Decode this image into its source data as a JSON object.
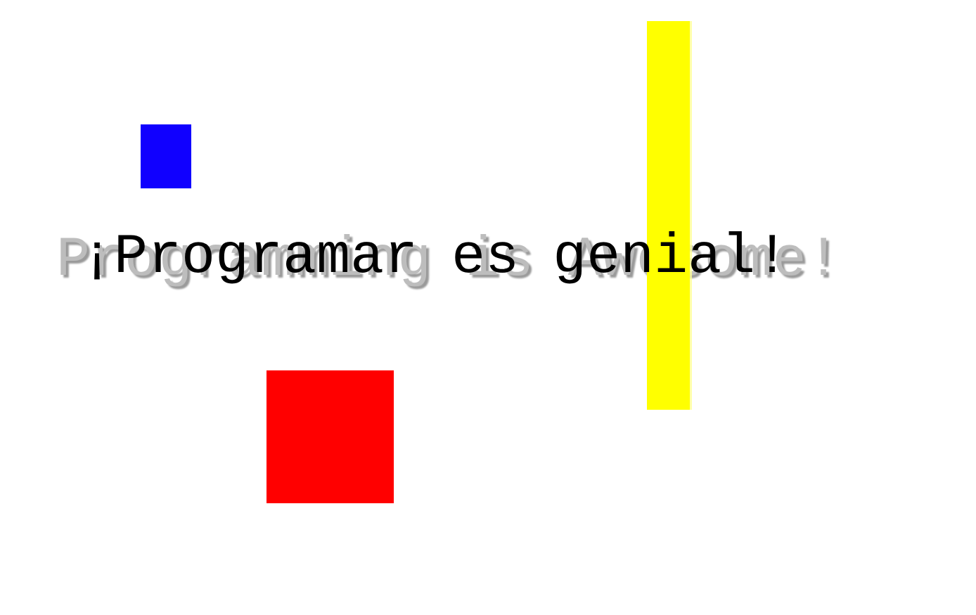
{
  "background_text": "Programming is Awesome!",
  "foreground_text": "¡Programar es genial!",
  "colors": {
    "background": "#ffffff",
    "blue_square": "#1000ff",
    "red_square": "#ff0000",
    "yellow_bar": "#ffff00",
    "shadow_text": "#bdbdbd",
    "main_text": "#000000"
  }
}
